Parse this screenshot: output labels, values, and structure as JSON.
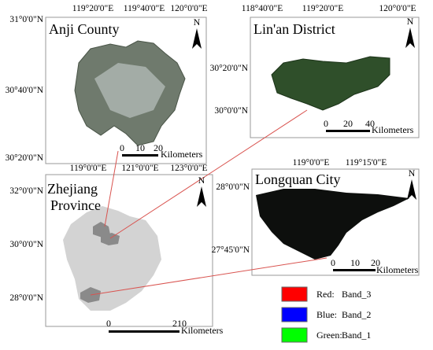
{
  "north_label": "N",
  "panels": [
    {
      "title": "Anji County",
      "lon_labels": [
        "119°20'0\"E",
        "119°40'0\"E",
        "120°0'0\"E"
      ],
      "lat_labels": [
        "31°0'0\"N",
        "30°40'0\"N",
        "30°20'0\"N"
      ],
      "scale_ticks": [
        "0",
        "10",
        "20"
      ],
      "scale_unit": "Kilometers"
    },
    {
      "title": "Lin'an District",
      "lon_labels": [
        "118°40'0\"E",
        "119°20'0\"E",
        "120°0'0\"E"
      ],
      "lat_labels": [
        "30°20'0\"N",
        "30°0'0\"N"
      ],
      "scale_ticks": [
        "0",
        "20",
        "40"
      ],
      "scale_unit": "Kilometers"
    },
    {
      "title": [
        "Zhejiang",
        "Province"
      ],
      "lon_labels": [
        "119°0'0\"E",
        "121°0'0\"E",
        "123°0'0\"E"
      ],
      "lat_labels": [
        "32°0'0\"N",
        "30°0'0\"N",
        "28°0'0\"N"
      ],
      "scale_ticks": [
        "0",
        "210"
      ],
      "scale_unit": "Kilometers"
    },
    {
      "title": "Longquan City",
      "lon_labels": [
        "119°0'0\"E",
        "119°15'0\"E"
      ],
      "lat_labels": [
        "28°0'0\"N",
        "27°45'0\"N"
      ],
      "scale_ticks": [
        "0",
        "10",
        "20"
      ],
      "scale_unit": "Kilometers"
    }
  ],
  "legend": [
    {
      "color": "#ff0000",
      "label": "Red:",
      "band": "Band_3"
    },
    {
      "color": "#0000ff",
      "label": "Blue:",
      "band": "Band_2"
    },
    {
      "color": "#00ff00",
      "label": "Green:",
      "band": "Band_1"
    }
  ]
}
